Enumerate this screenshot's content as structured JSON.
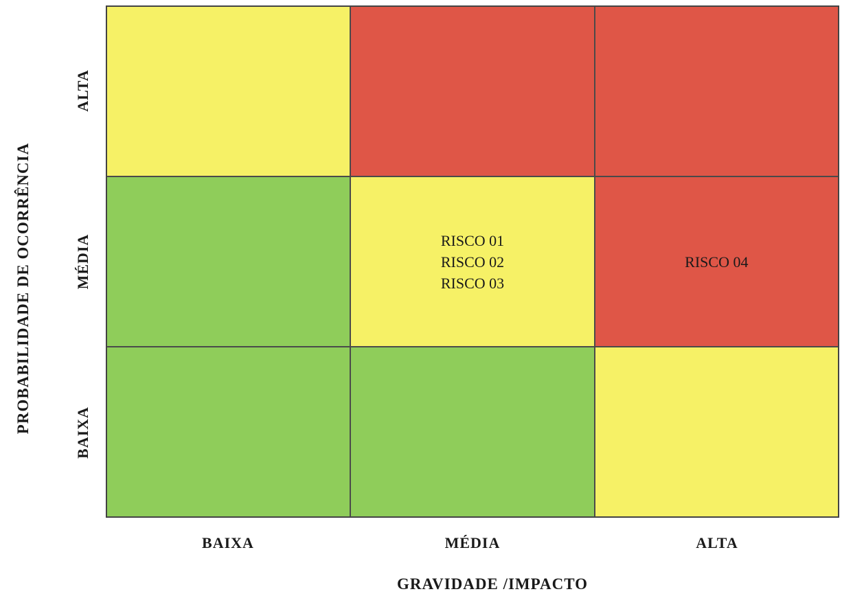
{
  "chart_data": {
    "type": "heatmap",
    "title": "",
    "xlabel": "GRAVIDADE /IMPACTO",
    "ylabel": "PROBABILIDADE DE OCORRÊNCIA",
    "x_categories": [
      "BAIXA",
      "MÉDIA",
      "ALTA"
    ],
    "y_categories": [
      "ALTA",
      "MÉDIA",
      "BAIXA"
    ],
    "levels": {
      "green": "#8fcd5a",
      "yellow": "#f6f166",
      "red": "#df5647"
    },
    "grid": [
      [
        "yellow",
        "red",
        "red"
      ],
      [
        "green",
        "yellow",
        "red"
      ],
      [
        "green",
        "green",
        "yellow"
      ]
    ],
    "cells": [
      {
        "x": "MÉDIA",
        "y": "MÉDIA",
        "risks": [
          "RISCO 01",
          "RISCO 02",
          "RISCO 03"
        ]
      },
      {
        "x": "ALTA",
        "y": "MÉDIA",
        "risks": [
          "RISCO 04"
        ]
      }
    ]
  }
}
